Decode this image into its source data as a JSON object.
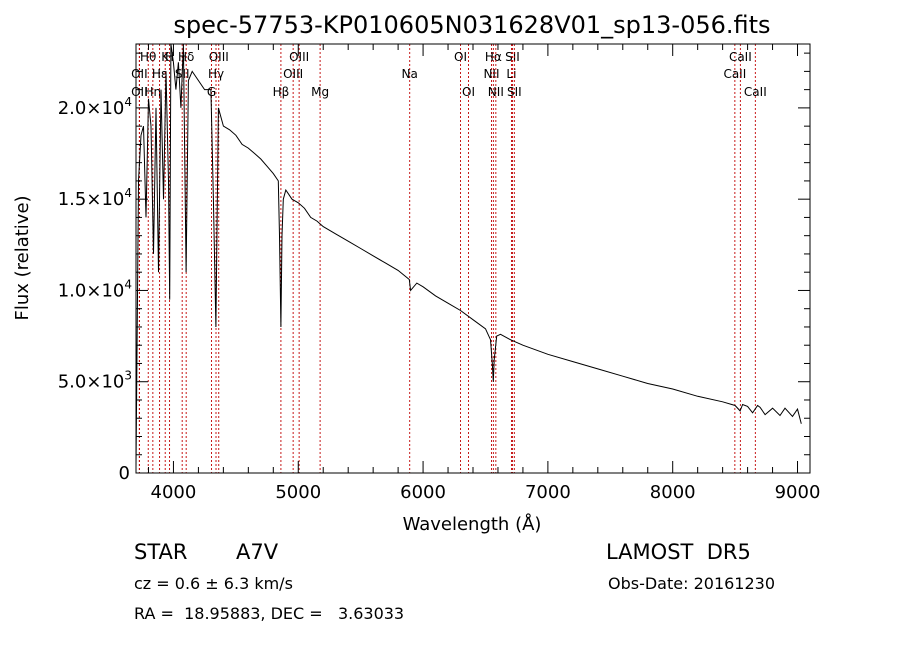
{
  "chart_data": {
    "type": "line",
    "title": "spec-57753-KP010605N031628V01_sp13-056.fits",
    "xlabel": "Wavelength (Å)",
    "ylabel": "Flux (relative)",
    "xlim": [
      3700,
      9100
    ],
    "ylim": [
      0,
      23500
    ],
    "x_ticks": [
      {
        "value": 4000,
        "label": "4000"
      },
      {
        "value": 5000,
        "label": "5000"
      },
      {
        "value": 6000,
        "label": "6000"
      },
      {
        "value": 7000,
        "label": "7000"
      },
      {
        "value": 8000,
        "label": "8000"
      },
      {
        "value": 9000,
        "label": "9000"
      }
    ],
    "y_ticks": [
      {
        "value": 0,
        "label": "0",
        "sup": ""
      },
      {
        "value": 5000,
        "label": "5.0×10",
        "sup": "3"
      },
      {
        "value": 10000,
        "label": "1.0×10",
        "sup": "4"
      },
      {
        "value": 15000,
        "label": "1.5×10",
        "sup": "4"
      },
      {
        "value": 20000,
        "label": "2.0×10",
        "sup": "4"
      }
    ],
    "grid": false,
    "legend": "none",
    "series": [
      {
        "x": [
          3700,
          3720,
          3740,
          3760,
          3780,
          3800,
          3820,
          3840,
          3860,
          3880,
          3900,
          3920,
          3940,
          3960,
          3970,
          3980,
          4000,
          4020,
          4040,
          4060,
          4080,
          4101,
          4120,
          4150,
          4200,
          4250,
          4300,
          4320,
          4340,
          4360,
          4380,
          4400,
          4450,
          4500,
          4550,
          4600,
          4650,
          4700,
          4750,
          4800,
          4840,
          4850,
          4861,
          4870,
          4880,
          4900,
          4920,
          4950,
          5000,
          5050,
          5100,
          5150,
          5200,
          5300,
          5400,
          5500,
          5600,
          5700,
          5800,
          5890,
          5900,
          5950,
          6000,
          6100,
          6200,
          6300,
          6400,
          6500,
          6540,
          6555,
          6563,
          6570,
          6590,
          6620,
          6700,
          6800,
          7000,
          7200,
          7400,
          7600,
          7800,
          8000,
          8200,
          8400,
          8500,
          8540,
          8560,
          8600,
          8640,
          8680,
          8700,
          8740,
          8800,
          8860,
          8900,
          8960,
          9000,
          9030
        ],
        "y": [
          300,
          16000,
          18500,
          19000,
          14000,
          20500,
          19000,
          12000,
          20000,
          11000,
          21000,
          15000,
          22000,
          16000,
          9500,
          24000,
          22500,
          21000,
          22500,
          20000,
          23500,
          11000,
          21500,
          22000,
          21500,
          21000,
          21000,
          15000,
          8000,
          20000,
          19500,
          19000,
          18800,
          18500,
          18000,
          17800,
          17500,
          17200,
          16800,
          16400,
          16000,
          13000,
          8000,
          13000,
          15000,
          15500,
          15300,
          15000,
          14800,
          14500,
          14000,
          13800,
          13500,
          13100,
          12700,
          12300,
          11900,
          11500,
          11100,
          10600,
          10000,
          10400,
          10200,
          9700,
          9300,
          8900,
          8400,
          7900,
          7300,
          6000,
          5000,
          6200,
          7500,
          7600,
          7300,
          7000,
          6500,
          6100,
          5700,
          5300,
          4900,
          4600,
          4200,
          3900,
          3700,
          3400,
          3750,
          3650,
          3300,
          3700,
          3600,
          3200,
          3550,
          3150,
          3550,
          3100,
          3500,
          2700
        ]
      }
    ],
    "line_markers": [
      {
        "label": "Hθ",
        "x": 3798,
        "row": 1
      },
      {
        "label": "OII",
        "x": 3727,
        "row": 2
      },
      {
        "label": "OII",
        "x": 3727,
        "row": 3
      },
      {
        "label": "Hη",
        "x": 3835,
        "row": 3
      },
      {
        "label": "Hε",
        "x": 3889,
        "row": 2
      },
      {
        "label": "K",
        "x": 3934,
        "row": 1
      },
      {
        "label": "H",
        "x": 3969,
        "row": 1
      },
      {
        "label": "SII",
        "x": 4070,
        "row": 2
      },
      {
        "label": "Hδ",
        "x": 4102,
        "row": 1
      },
      {
        "label": "Hγ",
        "x": 4341,
        "row": 2
      },
      {
        "label": "OIII",
        "x": 4363,
        "row": 1
      },
      {
        "label": "G",
        "x": 4305,
        "row": 3
      },
      {
        "label": "Hβ",
        "x": 4861,
        "row": 3
      },
      {
        "label": "OIII",
        "x": 4959,
        "row": 2
      },
      {
        "label": "OIII",
        "x": 5007,
        "row": 1
      },
      {
        "label": "Mg",
        "x": 5175,
        "row": 3
      },
      {
        "label": "Na",
        "x": 5893,
        "row": 2
      },
      {
        "label": "OI",
        "x": 6300,
        "row": 1
      },
      {
        "label": "OI",
        "x": 6364,
        "row": 3
      },
      {
        "label": "NII",
        "x": 6548,
        "row": 2
      },
      {
        "label": "Hα",
        "x": 6563,
        "row": 1
      },
      {
        "label": "NII",
        "x": 6583,
        "row": 3
      },
      {
        "label": "Li",
        "x": 6708,
        "row": 2
      },
      {
        "label": "SII",
        "x": 6716,
        "row": 1
      },
      {
        "label": "SII",
        "x": 6731,
        "row": 3
      },
      {
        "label": "CaII",
        "x": 8498,
        "row": 2
      },
      {
        "label": "CaII",
        "x": 8542,
        "row": 1
      },
      {
        "label": "CaII",
        "x": 8662,
        "row": 3
      }
    ]
  },
  "info": {
    "object_class": "STAR",
    "subclass": "A7V",
    "survey": "LAMOST  DR5",
    "cz_text": "cz = 0.6 ± 6.3 km/s",
    "obs_date": "Obs-Date: 20161230",
    "coords": "RA =  18.95883, DEC =   3.63033"
  }
}
